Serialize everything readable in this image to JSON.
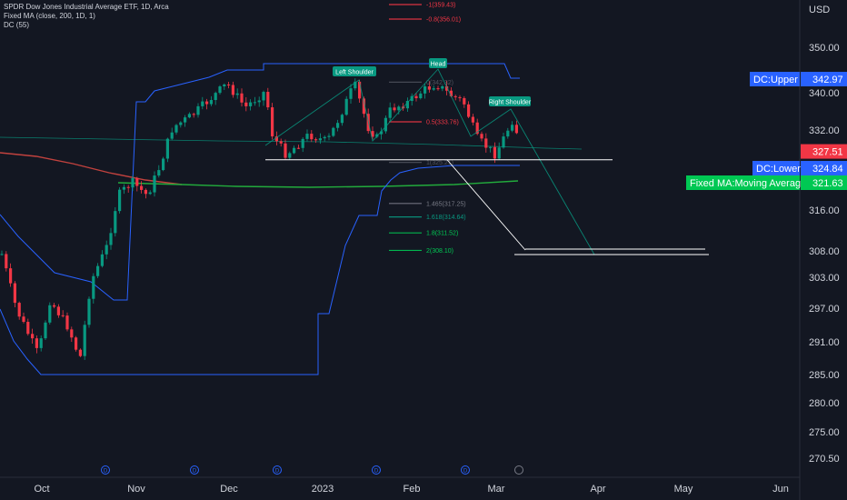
{
  "legend": {
    "title": "SPDR Dow Jones Industrial Average ETF, 1D, Arca",
    "ma": "Fixed MA (close, 200, 1D, 1)",
    "dc": "DC (55)"
  },
  "chart_data": {
    "type": "candlestick",
    "y_axis_label": "USD",
    "y_ticks": [
      350.0,
      340.0,
      332.0,
      324.0,
      316.0,
      308.0,
      303.0,
      297.0,
      291.0,
      285.0,
      280.0,
      275.0,
      270.5
    ],
    "x_ticks": [
      "Oct",
      "Nov",
      "Dec",
      "2023",
      "Feb",
      "Mar",
      "Apr",
      "May",
      "Jun"
    ],
    "current_price": 327.51,
    "price_tags": [
      {
        "label": "DC:Upper",
        "value": 342.97,
        "color": "#2962ff"
      },
      {
        "label": "DC:Lower",
        "value": 324.84,
        "color": "#2962ff"
      },
      {
        "label": "Fixed MA:Moving Average",
        "value": 321.63,
        "color": "#00c853"
      }
    ],
    "fib_levels": [
      {
        "label": "-1(359.43)",
        "value": 359.43,
        "color": "#f23645"
      },
      {
        "label": "-0.8(356.01)",
        "value": 356.01,
        "color": "#f23645"
      },
      {
        "label": "0(342.32)",
        "value": 342.32,
        "color": "#787b86"
      },
      {
        "label": "0.5(333.76)",
        "value": 333.76,
        "color": "#f23645"
      },
      {
        "label": "1(325.21)",
        "value": 325.21,
        "color": "#787b86"
      },
      {
        "label": "1.465(317.25)",
        "value": 317.25,
        "color": "#787b86"
      },
      {
        "label": "1.618(314.64)",
        "value": 314.64,
        "color": "#089981"
      },
      {
        "label": "1.8(311.52)",
        "value": 311.52,
        "color": "#00c853"
      },
      {
        "label": "2(308.10)",
        "value": 308.1,
        "color": "#00c853"
      }
    ],
    "pattern_labels": [
      "Left Shoulder",
      "Head",
      "Right Shoulder"
    ],
    "neckline": 325.0,
    "target_level": 308.4,
    "events_label": "D"
  }
}
